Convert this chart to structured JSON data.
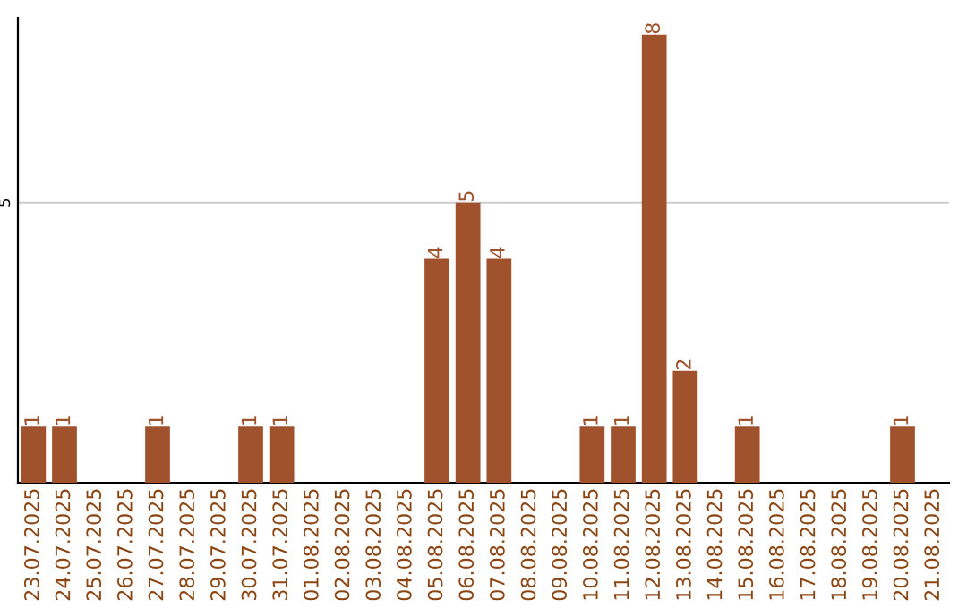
{
  "chart_data": {
    "type": "bar",
    "categories": [
      "23.07.2025",
      "24.07.2025",
      "25.07.2025",
      "26.07.2025",
      "27.07.2025",
      "28.07.2025",
      "29.07.2025",
      "30.07.2025",
      "31.07.2025",
      "01.08.2025",
      "02.08.2025",
      "03.08.2025",
      "04.08.2025",
      "05.08.2025",
      "06.08.2025",
      "07.08.2025",
      "08.08.2025",
      "09.08.2025",
      "10.08.2025",
      "11.08.2025",
      "12.08.2025",
      "13.08.2025",
      "14.08.2025",
      "15.08.2025",
      "16.08.2025",
      "17.08.2025",
      "18.08.2025",
      "19.08.2025",
      "20.08.2025",
      "21.08.2025"
    ],
    "values": [
      1,
      1,
      0,
      0,
      1,
      0,
      0,
      1,
      1,
      0,
      0,
      0,
      0,
      4,
      5,
      4,
      0,
      0,
      1,
      1,
      8,
      2,
      0,
      1,
      0,
      0,
      0,
      0,
      1,
      0
    ],
    "value_labels": [
      "1",
      "1",
      null,
      null,
      "1",
      null,
      null,
      "1",
      "1",
      null,
      null,
      null,
      null,
      "4",
      "5",
      "4",
      null,
      null,
      "1",
      "1",
      "8",
      "2",
      null,
      "1",
      null,
      null,
      null,
      null,
      "1",
      null
    ],
    "color": "#a0522d",
    "ylim": [
      0,
      8.3
    ],
    "yticks": [
      5
    ],
    "grid": "y"
  }
}
